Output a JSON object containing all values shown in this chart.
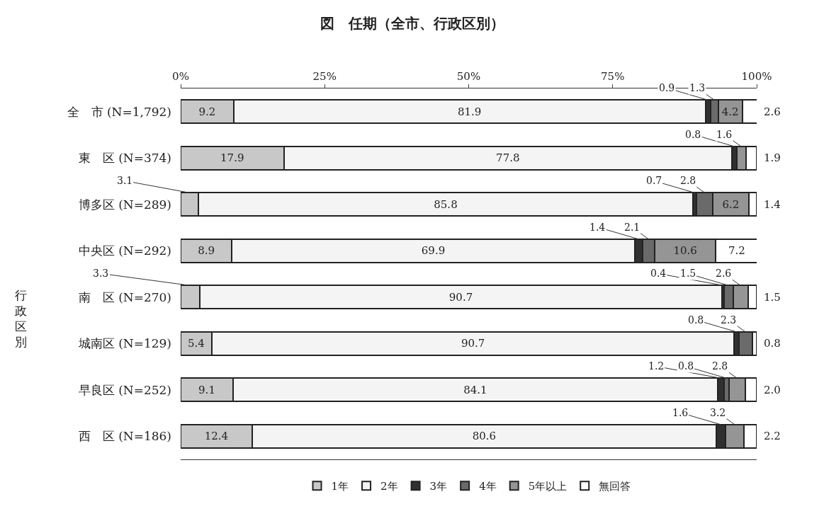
{
  "chart_data": {
    "type": "bar",
    "orientation": "horizontal",
    "stacked": true,
    "title": "図　任期（全市、行政区別）",
    "categories": [
      "全　市 (N=1,792)",
      "東　区 (N=374)",
      "博多区 (N=289)",
      "中央区 (N=292)",
      "南　区 (N=270)",
      "城南区 (N=129)",
      "早良区 (N=252)",
      "西　区 (N=186)"
    ],
    "series": [
      {
        "name": "1年",
        "color": "#c8c8c8",
        "values": [
          9.2,
          17.9,
          3.1,
          8.9,
          3.3,
          5.4,
          9.1,
          12.4
        ],
        "value_labels": [
          "9.2",
          "17.9",
          "3.1",
          "8.9",
          "3.3",
          "5.4",
          "9.1",
          "12.4"
        ]
      },
      {
        "name": "2年",
        "color": "#f4f4f4",
        "values": [
          81.9,
          77.8,
          85.8,
          69.9,
          90.7,
          90.7,
          84.1,
          80.6
        ],
        "value_labels": [
          "81.9",
          "77.8",
          "85.8",
          "69.9",
          "90.7",
          "90.7",
          "84.1",
          "80.6"
        ]
      },
      {
        "name": "3年",
        "color": "#303030",
        "values": [
          0.9,
          0.8,
          0.7,
          1.4,
          0.4,
          0.8,
          1.2,
          1.6
        ],
        "value_labels": [
          "0.9",
          "0.8",
          "0.7",
          "1.4",
          "0.4",
          "0.8",
          "1.2",
          "1.6"
        ]
      },
      {
        "name": "4年",
        "color": "#6a6a6a",
        "values": [
          1.3,
          null,
          2.8,
          2.1,
          1.5,
          2.3,
          0.8,
          null
        ],
        "value_labels": [
          "1.3",
          null,
          "2.8",
          "2.1",
          "1.5",
          "2.3",
          "0.8",
          null
        ]
      },
      {
        "name": "5年以上",
        "color": "#959595",
        "values": [
          4.2,
          1.6,
          6.2,
          10.6,
          2.6,
          null,
          2.8,
          3.2
        ],
        "value_labels": [
          "4.2",
          "1.6",
          "6.2",
          "10.6",
          "2.6",
          null,
          "2.8",
          "3.2"
        ]
      },
      {
        "name": "無回答",
        "color": "#ffffff",
        "values": [
          2.6,
          1.9,
          1.4,
          7.2,
          1.5,
          0.8,
          2.0,
          2.2
        ],
        "value_labels": [
          "2.6",
          "1.9",
          "1.4",
          "7.2",
          "1.5",
          "0.8",
          "2.0",
          "2.2"
        ]
      }
    ],
    "xlim": [
      0,
      100
    ],
    "xticks": [
      {
        "value": 0,
        "label": "0%"
      },
      {
        "value": 25,
        "label": "25%"
      },
      {
        "value": 50,
        "label": "50%"
      },
      {
        "value": 75,
        "label": "75%"
      },
      {
        "value": 100,
        "label": "100%"
      }
    ],
    "annotations": [
      "行政区別"
    ],
    "legend": "bottom"
  }
}
